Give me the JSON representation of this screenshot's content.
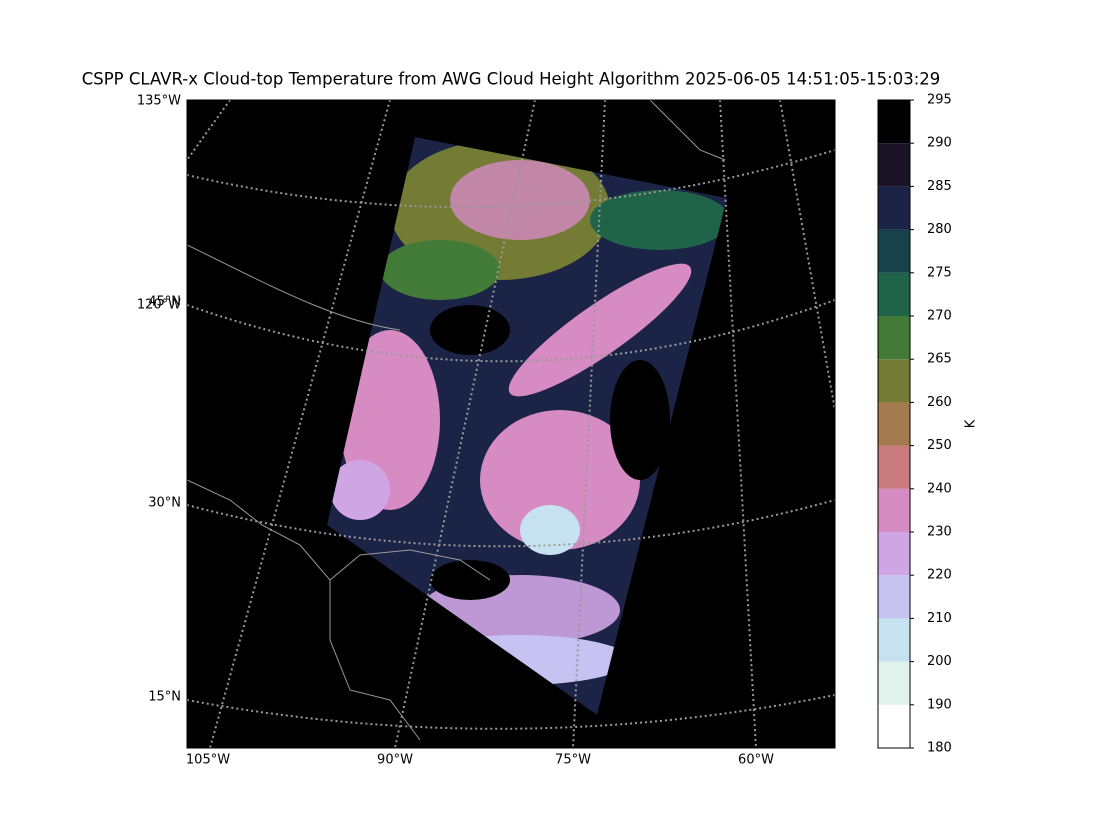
{
  "map": {
    "title": "CSPP CLAVR-x Cloud-top Temperature from AWG Cloud Height Algorithm 2025-06-05 14:51:05-15:03:29",
    "lon_labels": [
      "105°W",
      "90°W",
      "75°W",
      "60°W"
    ],
    "lat_labels": [
      "135°W",
      "120°W",
      "45°N",
      "30°N",
      "15°N"
    ],
    "colorbar": {
      "label": "K",
      "ticks": [
        180,
        190,
        200,
        210,
        220,
        230,
        240,
        250,
        260,
        265,
        270,
        275,
        280,
        285,
        290,
        295
      ],
      "colors": [
        "#ffffff",
        "#dff3ec",
        "#c6e2f0",
        "#c6c3f3",
        "#cfa5e3",
        "#d68bc3",
        "#c97a7c",
        "#a57a4e",
        "#737b34",
        "#427a38",
        "#1f6448",
        "#17424c",
        "#1b2446",
        "#1c1228",
        "#000000"
      ]
    }
  }
}
